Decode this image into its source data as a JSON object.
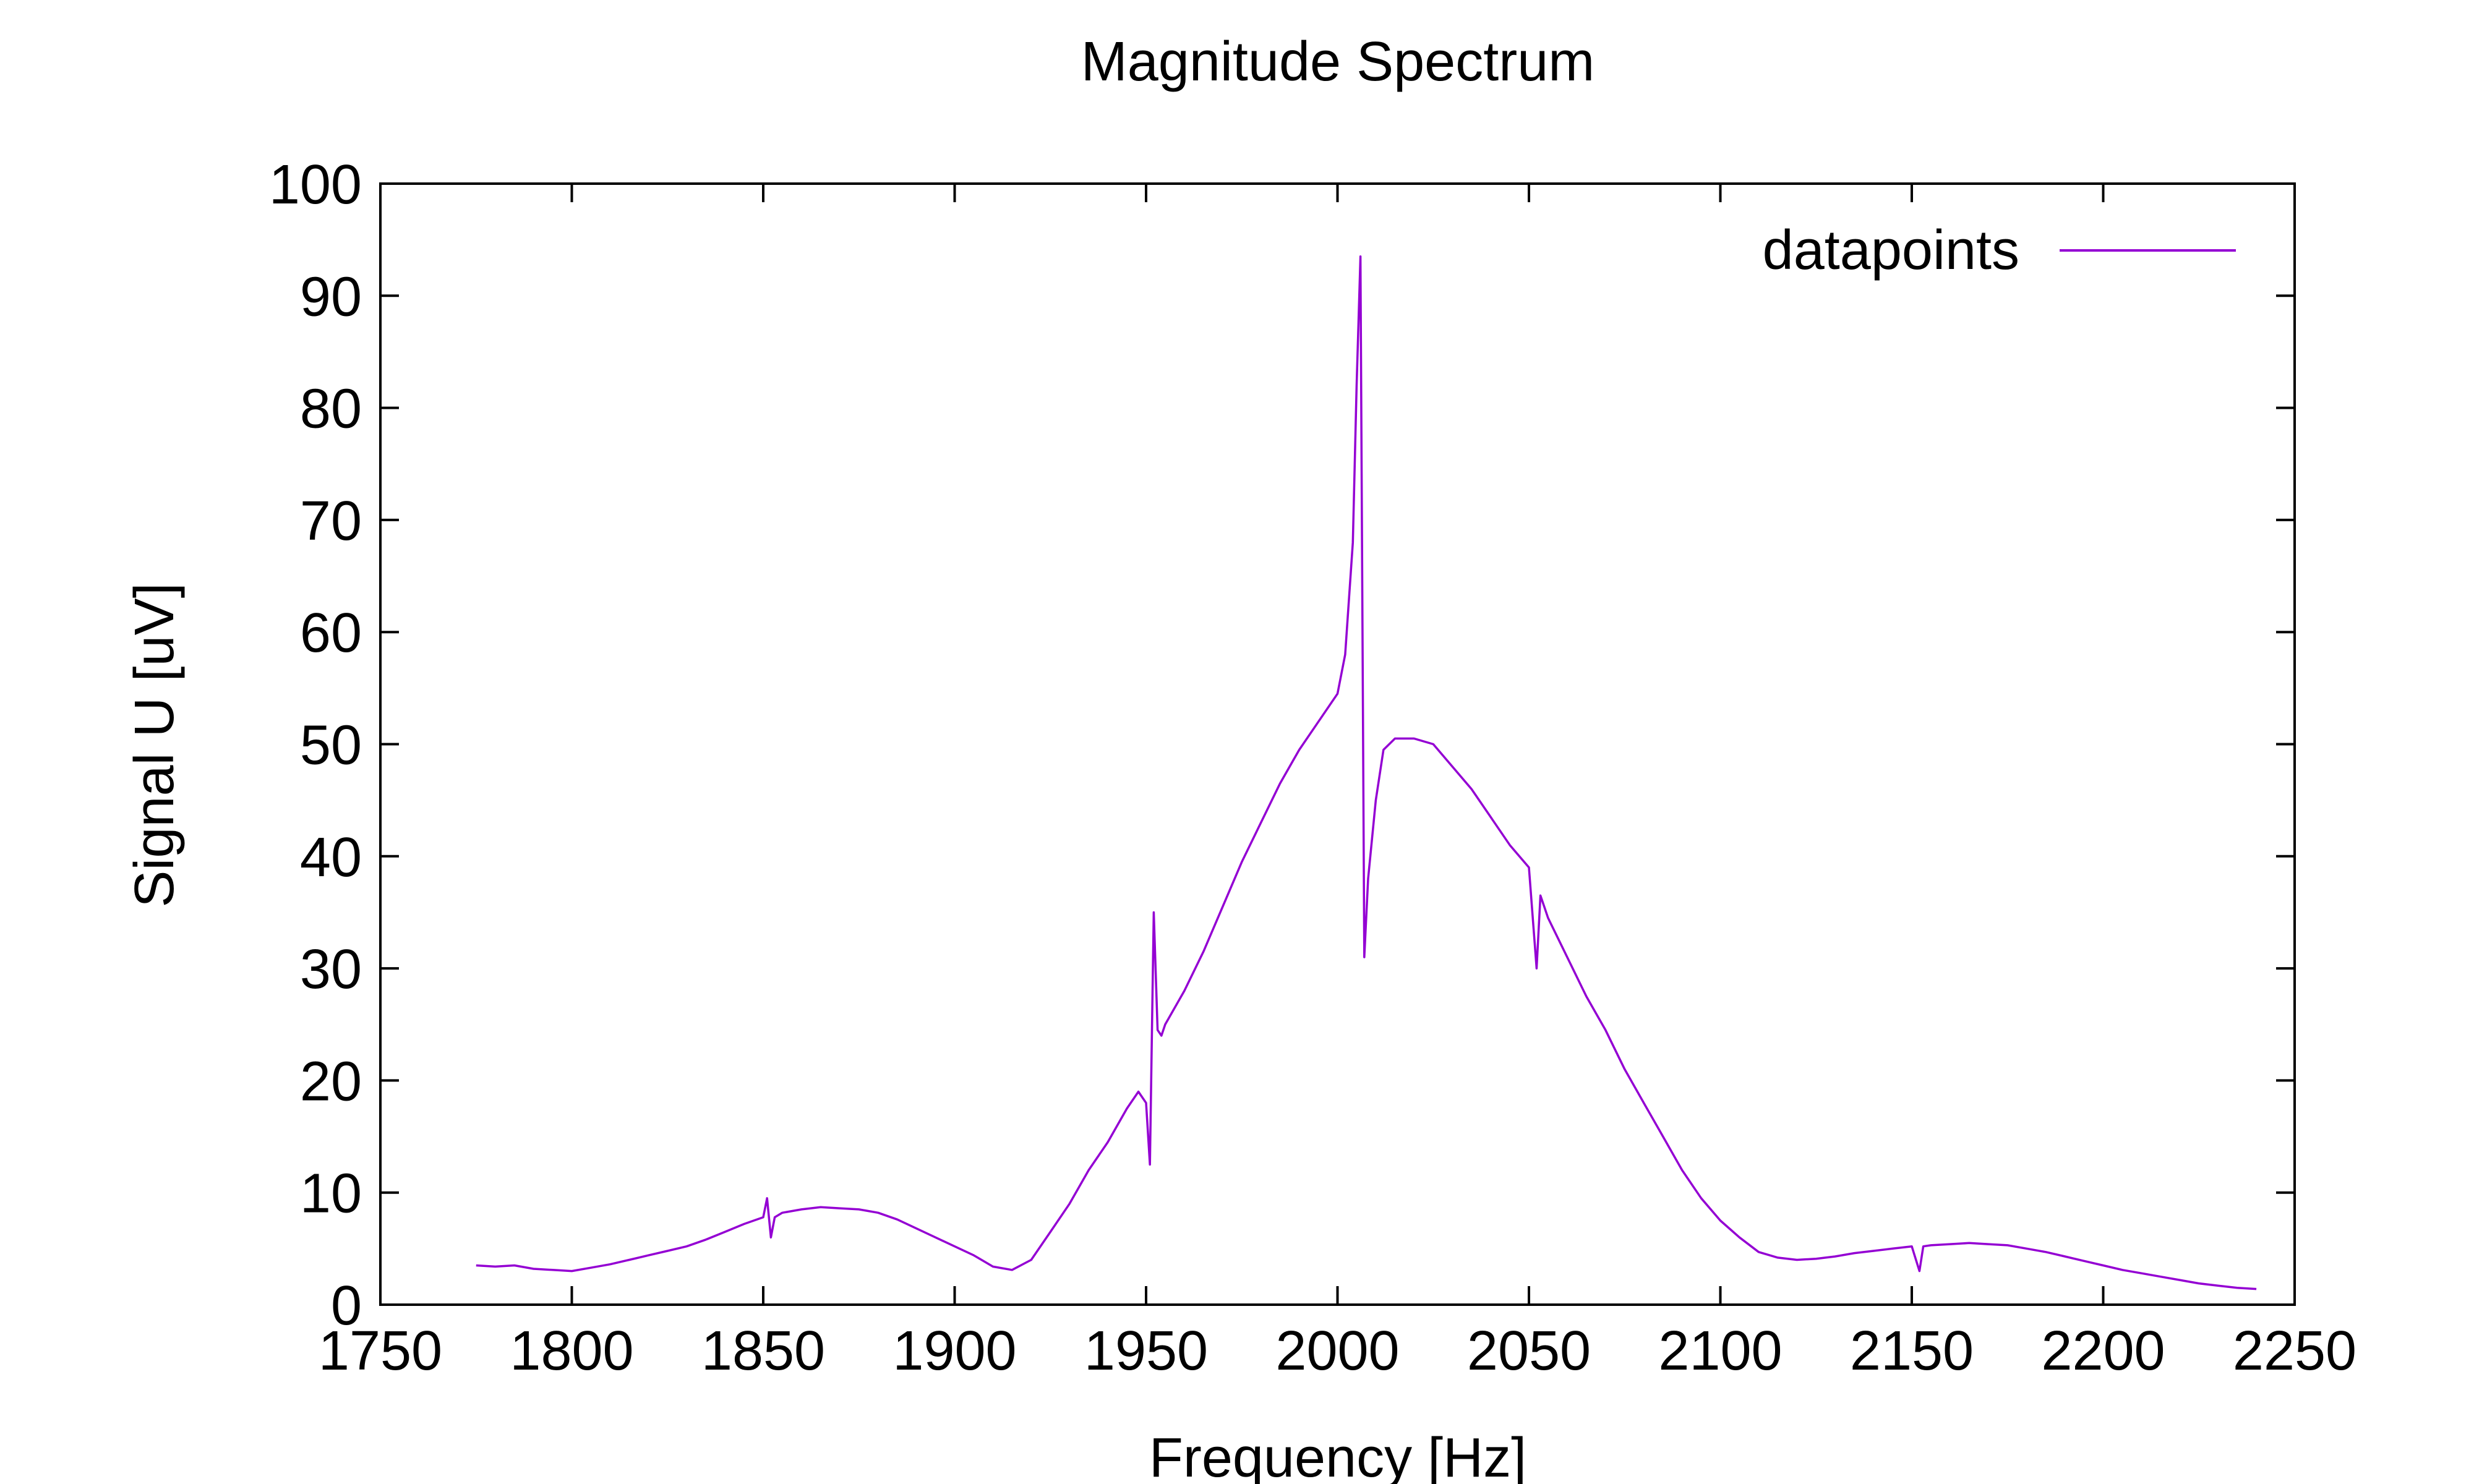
{
  "chart_data": {
    "type": "line",
    "title": "Magnitude Spectrum",
    "xlabel": "Frequency [Hz]",
    "ylabel": "Signal U [uV]",
    "xlim": [
      1750,
      2250
    ],
    "ylim": [
      0,
      100
    ],
    "xticks": [
      1750,
      1800,
      1850,
      1900,
      1950,
      2000,
      2050,
      2100,
      2150,
      2200,
      2250
    ],
    "yticks": [
      0,
      10,
      20,
      30,
      40,
      50,
      60,
      70,
      80,
      90,
      100
    ],
    "grid": false,
    "legend_position": "top-right",
    "line_color": "#9400d3",
    "series": [
      {
        "name": "datapoints",
        "x": [
          1775,
          1780,
          1785,
          1790,
          1795,
          1800,
          1805,
          1810,
          1815,
          1820,
          1825,
          1830,
          1835,
          1840,
          1845,
          1850,
          1851,
          1852,
          1853,
          1855,
          1860,
          1865,
          1870,
          1875,
          1880,
          1885,
          1890,
          1895,
          1900,
          1905,
          1910,
          1915,
          1920,
          1925,
          1930,
          1935,
          1940,
          1945,
          1948,
          1950,
          1951,
          1952,
          1953,
          1954,
          1955,
          1960,
          1965,
          1970,
          1975,
          1980,
          1985,
          1990,
          1995,
          2000,
          2002,
          2004,
          2005,
          2006,
          2007,
          2008,
          2010,
          2012,
          2015,
          2020,
          2025,
          2030,
          2035,
          2040,
          2045,
          2050,
          2052,
          2053,
          2054,
          2055,
          2060,
          2065,
          2070,
          2075,
          2080,
          2085,
          2090,
          2095,
          2100,
          2105,
          2110,
          2115,
          2120,
          2125,
          2130,
          2135,
          2140,
          2145,
          2150,
          2152,
          2153,
          2155,
          2160,
          2165,
          2170,
          2175,
          2180,
          2185,
          2190,
          2195,
          2200,
          2205,
          2210,
          2215,
          2220,
          2225,
          2230,
          2235,
          2240
        ],
        "y": [
          3.5,
          3.4,
          3.5,
          3.2,
          3.1,
          3.0,
          3.3,
          3.6,
          4.0,
          4.4,
          4.8,
          5.2,
          5.8,
          6.5,
          7.2,
          7.8,
          9.5,
          6.0,
          7.8,
          8.2,
          8.5,
          8.7,
          8.6,
          8.5,
          8.2,
          7.6,
          6.8,
          6.0,
          5.2,
          4.4,
          3.4,
          3.1,
          4.0,
          6.5,
          9.0,
          12.0,
          14.5,
          17.5,
          19.0,
          18.0,
          12.5,
          35.0,
          24.5,
          24.0,
          25.0,
          28.0,
          31.5,
          35.5,
          39.5,
          43.0,
          46.5,
          49.5,
          52.0,
          54.5,
          58.0,
          68.0,
          82.0,
          93.5,
          31.0,
          38.0,
          45.0,
          49.5,
          50.5,
          50.5,
          50.0,
          48.0,
          46.0,
          43.5,
          41.0,
          39.0,
          30.0,
          36.5,
          35.5,
          34.5,
          31.0,
          27.5,
          24.5,
          21.0,
          18.0,
          15.0,
          12.0,
          9.5,
          7.5,
          6.0,
          4.7,
          4.2,
          4.0,
          4.1,
          4.3,
          4.6,
          4.8,
          5.0,
          5.2,
          3.0,
          5.2,
          5.3,
          5.4,
          5.5,
          5.4,
          5.3,
          5.0,
          4.7,
          4.3,
          3.9,
          3.5,
          3.1,
          2.8,
          2.5,
          2.2,
          1.9,
          1.7,
          1.5,
          1.4
        ]
      }
    ]
  }
}
